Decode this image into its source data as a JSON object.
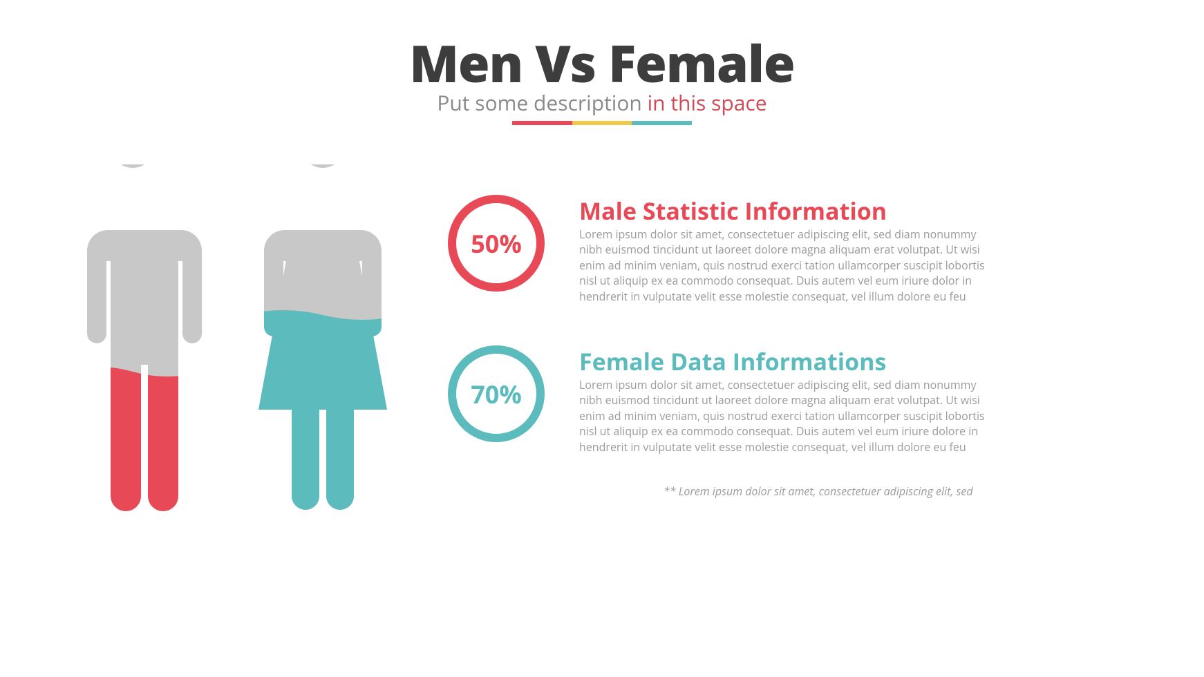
{
  "colors": {
    "male": "#e74957",
    "female": "#5bbbbd",
    "yellow": "#f2c84b",
    "grey": "#c8c8c8",
    "title": "#3d3d3d",
    "subtitle_grey": "#8a8a8a",
    "body_grey": "#9b9b9b",
    "bg": "#ffffff"
  },
  "divider_colors": [
    "#e74957",
    "#f2c84b",
    "#5bbbbd"
  ],
  "header": {
    "title": "Men Vs Female",
    "subtitle_plain": "Put some description ",
    "subtitle_accent": "in this space"
  },
  "figures": {
    "male": {
      "fill_percent": 50,
      "fill_color": "#e74957",
      "base_color": "#c8c8c8"
    },
    "female": {
      "fill_percent": 70,
      "fill_color": "#5bbbbd",
      "base_color": "#c8c8c8"
    }
  },
  "stats": {
    "male": {
      "percent_label": "50%",
      "ring_color": "#e74957",
      "ring_width": 12,
      "title": "Male Statistic Information",
      "title_color": "#e74957",
      "body": "Lorem ipsum dolor sit amet, consectetuer adipiscing elit, sed diam nonummy nibh euismod tincidunt ut laoreet dolore magna aliquam erat volutpat. Ut wisi enim ad minim veniam, quis nostrud exerci tation ullamcorper suscipit lobortis nisl ut aliquip ex ea commodo consequat. Duis autem vel eum iriure dolor in hendrerit in vulputate velit esse molestie consequat, vel illum dolore eu feu"
    },
    "female": {
      "percent_label": "70%",
      "ring_color": "#5bbbbd",
      "ring_width": 12,
      "title": "Female Data Informations",
      "title_color": "#5bbbbd",
      "body": "Lorem ipsum dolor sit amet, consectetuer adipiscing elit, sed diam nonummy nibh euismod tincidunt ut laoreet dolore magna aliquam erat volutpat. Ut wisi enim ad minim veniam, quis nostrud exerci tation ullamcorper suscipit lobortis nisl ut aliquip ex ea commodo consequat. Duis autem vel eum iriure dolore in hendrerit in vulputate velit esse molestie consequat, vel illum dolore eu feu"
    }
  },
  "footnote": "** Lorem ipsum dolor sit amet, consectetuer adipiscing elit, sed"
}
